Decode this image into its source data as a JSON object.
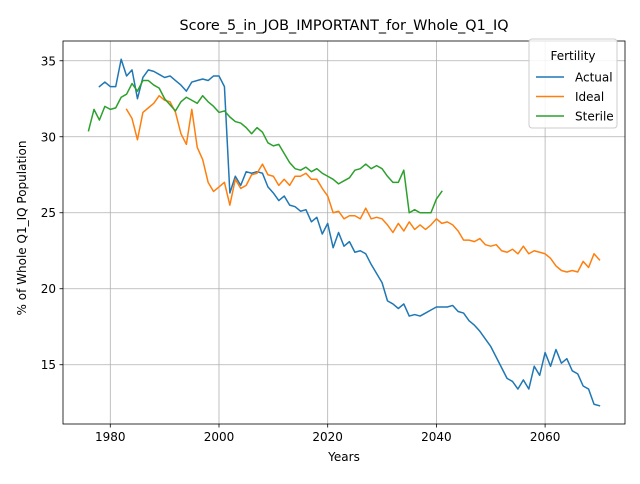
{
  "chart_data": {
    "type": "line",
    "title": "Score_5_in_JOB_IMPORTANT_for_Whole_Q1_IQ",
    "xlabel": "Years",
    "ylabel": "% of Whole Q1_IQ Population",
    "xlim": [
      1971.3,
      2074.7
    ],
    "ylim": [
      11.1,
      36.3
    ],
    "xticks": [
      1980,
      2000,
      2020,
      2040,
      2060
    ],
    "yticks": [
      15,
      20,
      25,
      30,
      35
    ],
    "grid": true,
    "legend": {
      "title": "Fertility",
      "placement": "upper right"
    },
    "series": [
      {
        "name": "Actual",
        "color": "#1f77b4",
        "x": [
          1978,
          1979,
          1980,
          1981,
          1982,
          1983,
          1984,
          1985,
          1986,
          1987,
          1988,
          1989,
          1990,
          1991,
          1992,
          1993,
          1994,
          1995,
          1996,
          1997,
          1998,
          1999,
          2000,
          2001,
          2002,
          2003,
          2004,
          2005,
          2006,
          2007,
          2008,
          2009,
          2010,
          2011,
          2012,
          2013,
          2014,
          2015,
          2016,
          2017,
          2018,
          2019,
          2020,
          2021,
          2022,
          2023,
          2024,
          2025,
          2026,
          2027,
          2028,
          2029,
          2030,
          2031,
          2032,
          2033,
          2034,
          2035,
          2036,
          2037,
          2038,
          2039,
          2040,
          2041,
          2042,
          2043,
          2044,
          2045,
          2046,
          2047,
          2048,
          2049,
          2050,
          2051,
          2052,
          2053,
          2054,
          2055,
          2056,
          2057,
          2058,
          2059,
          2060,
          2061,
          2062,
          2063,
          2064,
          2065,
          2066,
          2067,
          2068,
          2069,
          2070
        ],
        "values": [
          33.3,
          33.6,
          33.3,
          33.3,
          35.1,
          34.0,
          34.4,
          32.5,
          33.9,
          34.4,
          34.3,
          34.1,
          33.9,
          34.0,
          33.7,
          33.4,
          33.0,
          33.6,
          33.7,
          33.8,
          33.7,
          34.0,
          34.0,
          33.3,
          26.3,
          27.4,
          26.8,
          27.7,
          27.6,
          27.7,
          27.6,
          26.7,
          26.3,
          25.8,
          26.1,
          25.5,
          25.4,
          25.1,
          25.2,
          24.4,
          24.7,
          23.6,
          24.3,
          22.7,
          23.7,
          22.8,
          23.1,
          22.4,
          22.5,
          22.3,
          21.6,
          21.0,
          20.4,
          19.2,
          19.0,
          18.7,
          19.0,
          18.2,
          18.3,
          18.2,
          18.4,
          18.6,
          18.8,
          18.8,
          18.8,
          18.9,
          18.5,
          18.4,
          17.9,
          17.6,
          17.2,
          16.7,
          16.2,
          15.5,
          14.8,
          14.1,
          13.9,
          13.4,
          14.0,
          13.4,
          14.9,
          14.3,
          15.8,
          14.9,
          16.0,
          15.1,
          15.4,
          14.6,
          14.4,
          13.6,
          13.4,
          12.4,
          12.3
        ]
      },
      {
        "name": "Ideal",
        "color": "#ff7f0e",
        "x": [
          1983,
          1984,
          1985,
          1986,
          1987,
          1988,
          1989,
          1990,
          1991,
          1992,
          1993,
          1994,
          1995,
          1996,
          1997,
          1998,
          1999,
          2000,
          2001,
          2002,
          2003,
          2004,
          2005,
          2006,
          2007,
          2008,
          2009,
          2010,
          2011,
          2012,
          2013,
          2014,
          2015,
          2016,
          2017,
          2018,
          2019,
          2020,
          2021,
          2022,
          2023,
          2024,
          2025,
          2026,
          2027,
          2028,
          2029,
          2030,
          2031,
          2032,
          2033,
          2034,
          2035,
          2036,
          2037,
          2038,
          2039,
          2040,
          2041,
          2042,
          2043,
          2044,
          2045,
          2046,
          2047,
          2048,
          2049,
          2050,
          2051,
          2052,
          2053,
          2054,
          2055,
          2056,
          2057,
          2058,
          2059,
          2060,
          2061,
          2062,
          2063,
          2064,
          2065,
          2066,
          2067,
          2068,
          2069,
          2070
        ],
        "values": [
          31.8,
          31.2,
          29.8,
          31.6,
          31.9,
          32.2,
          32.7,
          32.4,
          32.3,
          31.6,
          30.2,
          29.5,
          31.8,
          29.3,
          28.5,
          27.0,
          26.4,
          26.7,
          27.0,
          25.5,
          27.2,
          26.6,
          26.8,
          27.5,
          27.6,
          28.2,
          27.5,
          27.4,
          26.8,
          27.2,
          26.8,
          27.4,
          27.4,
          27.6,
          27.2,
          27.2,
          26.6,
          26.1,
          25.0,
          25.1,
          24.6,
          24.8,
          24.8,
          24.6,
          25.3,
          24.6,
          24.7,
          24.6,
          24.2,
          23.7,
          24.3,
          23.8,
          24.4,
          23.9,
          24.2,
          23.9,
          24.2,
          24.6,
          24.3,
          24.4,
          24.2,
          23.8,
          23.2,
          23.2,
          23.1,
          23.3,
          22.9,
          22.8,
          22.9,
          22.5,
          22.4,
          22.6,
          22.3,
          22.8,
          22.3,
          22.5,
          22.4,
          22.3,
          22.0,
          21.5,
          21.2,
          21.1,
          21.2,
          21.1,
          21.8,
          21.4,
          22.3,
          21.9
        ]
      },
      {
        "name": "Sterile",
        "color": "#2ca02c",
        "x": [
          1976,
          1977,
          1978,
          1979,
          1980,
          1981,
          1982,
          1983,
          1984,
          1985,
          1986,
          1987,
          1988,
          1989,
          1990,
          1991,
          1992,
          1993,
          1994,
          1995,
          1996,
          1997,
          1998,
          1999,
          2000,
          2001,
          2002,
          2003,
          2004,
          2005,
          2006,
          2007,
          2008,
          2009,
          2010,
          2011,
          2012,
          2013,
          2014,
          2015,
          2016,
          2017,
          2018,
          2019,
          2020,
          2021,
          2022,
          2023,
          2024,
          2025,
          2026,
          2027,
          2028,
          2029,
          2030,
          2031,
          2032,
          2033,
          2034,
          2035,
          2036,
          2037,
          2038,
          2039,
          2040,
          2041
        ],
        "values": [
          30.4,
          31.8,
          31.1,
          32.0,
          31.8,
          31.9,
          32.6,
          32.8,
          33.5,
          33.0,
          33.7,
          33.7,
          33.4,
          33.2,
          32.5,
          32.1,
          31.7,
          32.3,
          32.6,
          32.4,
          32.2,
          32.7,
          32.3,
          32.0,
          31.6,
          31.7,
          31.3,
          31.0,
          30.9,
          30.6,
          30.2,
          30.6,
          30.3,
          29.6,
          29.4,
          29.5,
          28.9,
          28.3,
          27.9,
          27.8,
          28.0,
          27.7,
          27.9,
          27.6,
          27.4,
          27.2,
          26.9,
          27.1,
          27.3,
          27.8,
          27.9,
          28.2,
          27.9,
          28.1,
          27.9,
          27.4,
          27.0,
          27.0,
          27.8,
          25.0,
          25.2,
          25.0,
          25.0,
          25.0,
          25.9,
          26.4
        ]
      }
    ]
  }
}
